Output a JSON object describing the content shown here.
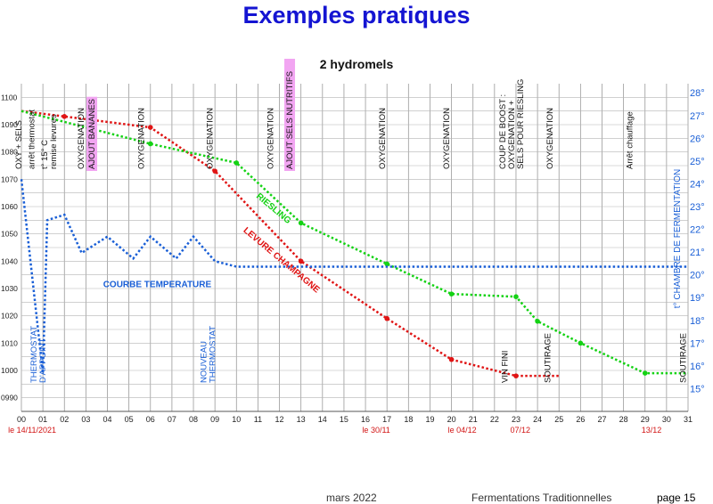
{
  "header": {
    "title": "Exemples pratiques",
    "subtitle": "2 hydromels"
  },
  "footer": {
    "date": "mars 2022",
    "doc": "Fermentations Traditionnelles",
    "page": "page 15"
  },
  "chart_data": {
    "type": "line",
    "x_ticks": [
      "00",
      "01",
      "02",
      "03",
      "04",
      "05",
      "06",
      "07",
      "08",
      "09",
      "10",
      "11",
      "12",
      "13",
      "14",
      "15",
      "16",
      "17",
      "18",
      "19",
      "20",
      "21",
      "22",
      "23",
      "24",
      "25",
      "26",
      "27",
      "28",
      "29",
      "30",
      "31"
    ],
    "date_labels": [
      {
        "x": 0.5,
        "text": "le 14/11/2021"
      },
      {
        "x": 16.5,
        "text": "le 30/11"
      },
      {
        "x": 20.5,
        "text": "le 04/12"
      },
      {
        "x": 23.2,
        "text": "07/12"
      },
      {
        "x": 29.3,
        "text": "13/12"
      }
    ],
    "y_left_ticks": [
      "0990",
      "1000",
      "1010",
      "1020",
      "1030",
      "1040",
      "1050",
      "1060",
      "1070",
      "1080",
      "1090",
      "1100"
    ],
    "y_left_range": [
      985,
      1105
    ],
    "y_right_ticks": [
      "15°",
      "16°",
      "17°",
      "18°",
      "19°",
      "20°",
      "21°",
      "22°",
      "23°",
      "24°",
      "25°",
      "26°",
      "27°",
      "28°"
    ],
    "y_right_range": [
      14,
      28.4
    ],
    "y_right_label": "t° CHAMBRE DE FERMENTATION",
    "series": [
      {
        "name": "LEVURE CHAMPAGNE",
        "color": "#e01414",
        "axis": "left",
        "points": [
          [
            0,
            1095
          ],
          [
            2,
            1093
          ],
          [
            6,
            1089
          ],
          [
            9,
            1073
          ],
          [
            13,
            1040
          ],
          [
            17,
            1019
          ],
          [
            20,
            1004
          ],
          [
            23,
            998
          ],
          [
            25,
            998
          ]
        ],
        "markers": [
          2,
          6,
          9,
          13,
          17,
          20,
          23
        ]
      },
      {
        "name": "RIESLING",
        "color": "#14d214",
        "axis": "left",
        "points": [
          [
            0,
            1095
          ],
          [
            2,
            1091
          ],
          [
            6,
            1083
          ],
          [
            10,
            1076
          ],
          [
            13,
            1054
          ],
          [
            17,
            1039
          ],
          [
            20,
            1028
          ],
          [
            23,
            1027
          ],
          [
            24,
            1018
          ],
          [
            26,
            1010
          ],
          [
            29,
            999
          ],
          [
            31,
            999
          ]
        ],
        "markers": [
          6,
          10,
          13,
          17,
          20,
          23,
          24,
          26,
          29
        ]
      },
      {
        "name": "COURBE TEMPERATURE",
        "color": "#1a5fd6",
        "axis": "left",
        "points": [
          [
            0,
            1070
          ],
          [
            1,
            999
          ],
          [
            1.2,
            1055
          ],
          [
            2,
            1057
          ],
          [
            2.8,
            1043
          ],
          [
            4,
            1049
          ],
          [
            5.2,
            1041
          ],
          [
            6,
            1049
          ],
          [
            7.2,
            1041
          ],
          [
            8,
            1049
          ],
          [
            9,
            1040
          ],
          [
            10,
            1038
          ],
          [
            31,
            1038
          ]
        ],
        "markers": []
      }
    ],
    "series_labels": [
      {
        "text": "COURBE TEMPERATURE",
        "x": 3.8,
        "y": 1030.5,
        "color": "#1a5fd6",
        "rotate": 0
      },
      {
        "text": "LEVURE CHAMPAGNE",
        "x": 10.3,
        "y": 1051,
        "color": "#e01414",
        "rotate": 40
      },
      {
        "text": "RIESLING",
        "x": 10.9,
        "y": 1063.5,
        "color": "#14d214",
        "rotate": 40
      }
    ],
    "annotations": [
      {
        "x": 0,
        "lines": [
          "OXY + SELS"
        ],
        "highlight": [
          "SELS"
        ],
        "color": "#111"
      },
      {
        "x": 0.6,
        "lines": [
          "arrêt thermostat"
        ],
        "color": "#111"
      },
      {
        "x": 1.2,
        "lines": [
          "t° 15° C",
          "remise levures"
        ],
        "color": "#111"
      },
      {
        "x": 2.9,
        "lines": [
          "OXYGENATION"
        ],
        "color": "#111"
      },
      {
        "x": 3.4,
        "lines": [
          "AJOUT BANANES"
        ],
        "highlight": [
          "AJOUT BANANES"
        ],
        "color": "#111"
      },
      {
        "x": 5.7,
        "lines": [
          "OXYGENATION"
        ],
        "color": "#111"
      },
      {
        "x": 8.9,
        "lines": [
          "OXYGENATION"
        ],
        "color": "#111"
      },
      {
        "x": 11.7,
        "lines": [
          "OXYGENATION"
        ],
        "color": "#111"
      },
      {
        "x": 12.6,
        "lines": [
          "AJOUT SELS NUTRITIFS"
        ],
        "highlight": [
          "AJOUT SELS NUTRITIFS"
        ],
        "color": "#111"
      },
      {
        "x": 16.9,
        "lines": [
          "OXYGENATION"
        ],
        "color": "#111"
      },
      {
        "x": 19.9,
        "lines": [
          "OXYGENATION"
        ],
        "color": "#111"
      },
      {
        "x": 22.5,
        "lines": [
          "COUP DE BOOST :",
          "OXYGENATION +",
          "SELS POUR RIESLING"
        ],
        "highlight": [
          "SELS"
        ],
        "color": "#111"
      },
      {
        "x": 24.7,
        "lines": [
          "OXYGENATION"
        ],
        "color": "#111"
      },
      {
        "x": 28.4,
        "lines": [
          "Arrêt chauffage"
        ],
        "color": "#111"
      }
    ],
    "bottom_annotations": [
      {
        "x": 0.7,
        "lines": [
          "THERMOSTAT",
          "D'APPOINT"
        ],
        "color": "#1a5fd6"
      },
      {
        "x": 8.6,
        "lines": [
          "NOUVEAU",
          "THERMOSTAT"
        ],
        "color": "#1a5fd6"
      },
      {
        "x": 22.6,
        "lines": [
          "VIN FINI"
        ],
        "color": "#111"
      },
      {
        "x": 24.6,
        "lines": [
          "SOUTIRAGE"
        ],
        "color": "#111"
      },
      {
        "x": 30.9,
        "lines": [
          "SOUTIRAGE"
        ],
        "color": "#111"
      }
    ]
  }
}
